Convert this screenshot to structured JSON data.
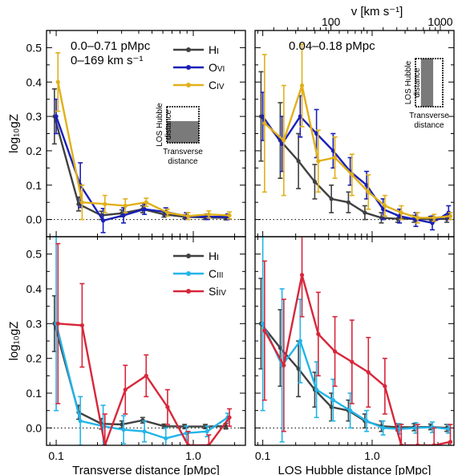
{
  "figure": {
    "top_axis_label": "v [km s⁻¹]",
    "top_ticks": [
      {
        "value": 100,
        "label": "100"
      },
      {
        "value": 1000,
        "label": "1000"
      }
    ]
  },
  "chart_data": [
    {
      "id": "top-left",
      "type": "line",
      "panel_text": [
        "0.0–0.71 pMpc",
        "0–169 km s⁻¹"
      ],
      "ylabel": "log₁₀gZ",
      "xlabel": "",
      "xscale": "log",
      "xlim": [
        0.085,
        2.4
      ],
      "ylim": [
        -0.05,
        0.55
      ],
      "ytick_labels": [
        "0.0",
        "0.1",
        "0.2",
        "0.3",
        "0.4",
        "0.5"
      ],
      "x_ticks": [],
      "legend": {
        "placement": "top-right",
        "entries": [
          "HI",
          "OVI",
          "CIV"
        ]
      },
      "inset": {
        "present": true,
        "y_label": "LOS Hubble distance",
        "x_label": "Transverse distance"
      },
      "series": [
        {
          "name": "HI",
          "color": "#404040",
          "x": [
            0.1,
            0.15,
            0.22,
            0.31,
            0.44,
            0.63,
            0.89,
            1.26,
            1.78
          ],
          "y": [
            0.3,
            0.045,
            0.012,
            0.018,
            0.03,
            0.015,
            0.008,
            0.006,
            0.005
          ],
          "err": [
            0.08,
            0.02,
            0.012,
            0.01,
            0.01,
            0.008,
            0.006,
            0.006,
            0.006
          ]
        },
        {
          "name": "OVI",
          "color": "#1a20b8",
          "x": [
            0.1,
            0.15,
            0.22,
            0.31,
            0.44,
            0.63,
            0.89,
            1.26,
            1.78
          ],
          "y": [
            0.3,
            0.1,
            -0.003,
            0.012,
            0.03,
            0.022,
            0.01,
            0.008,
            0.008
          ],
          "err": [
            0.05,
            0.065,
            0.035,
            0.022,
            0.015,
            0.012,
            0.01,
            0.008,
            0.008
          ]
        },
        {
          "name": "CIV",
          "color": "#e0b01a",
          "x": [
            0.1,
            0.15,
            0.22,
            0.31,
            0.44,
            0.63,
            0.89,
            1.26,
            1.78
          ],
          "y": [
            0.4,
            0.05,
            0.045,
            0.04,
            0.05,
            0.02,
            0.01,
            0.015,
            0.012
          ],
          "err": [
            0.085,
            0.05,
            0.025,
            0.02,
            0.012,
            0.01,
            0.01,
            0.01,
            0.01
          ]
        }
      ]
    },
    {
      "id": "top-right",
      "type": "line",
      "panel_text": [
        "0.04–0.18 pMpc"
      ],
      "ylabel": "",
      "xlabel": "",
      "xscale": "log",
      "xlim": [
        0.085,
        5.6
      ],
      "ylim": [
        -0.05,
        0.55
      ],
      "ytick_labels": [],
      "x_ticks": [],
      "legend": null,
      "inset": {
        "present": true,
        "y_label": "LOS Hubble distance",
        "x_label": "Transverse distance"
      },
      "series": [
        {
          "name": "HI",
          "color": "#404040",
          "x": [
            0.1,
            0.15,
            0.22,
            0.31,
            0.44,
            0.63,
            0.89,
            1.26,
            1.78,
            2.51,
            3.55,
            5.0
          ],
          "y": [
            0.3,
            0.23,
            0.17,
            0.11,
            0.06,
            0.05,
            0.02,
            0.005,
            0.002,
            0.002,
            0.001,
            0.002
          ],
          "err": [
            0.13,
            0.11,
            0.08,
            0.05,
            0.04,
            0.03,
            0.02,
            0.015,
            0.01,
            0.01,
            0.008,
            0.01
          ]
        },
        {
          "name": "OVI",
          "color": "#1a20b8",
          "x": [
            0.1,
            0.15,
            0.22,
            0.31,
            0.44,
            0.63,
            0.89,
            1.26,
            1.78,
            2.51,
            3.55,
            5.0
          ],
          "y": [
            0.3,
            0.22,
            0.3,
            0.25,
            0.2,
            0.14,
            0.1,
            0.03,
            0.01,
            0.0,
            -0.01,
            0.02
          ],
          "err": [
            0.07,
            0.08,
            0.06,
            0.07,
            0.05,
            0.04,
            0.04,
            0.03,
            0.02,
            0.02,
            0.02,
            0.02
          ]
        },
        {
          "name": "CIV",
          "color": "#e0b01a",
          "x": [
            0.1,
            0.15,
            0.22,
            0.31,
            0.44,
            0.63,
            0.89,
            1.26,
            1.78,
            2.51,
            3.55,
            5.0
          ],
          "y": [
            0.28,
            0.23,
            0.39,
            0.17,
            0.18,
            0.13,
            0.08,
            0.04,
            0.02,
            0.005,
            0.005,
            0.01
          ],
          "err": [
            0.2,
            0.16,
            0.12,
            0.09,
            0.06,
            0.06,
            0.05,
            0.03,
            0.02,
            0.015,
            0.01,
            0.01
          ]
        }
      ]
    },
    {
      "id": "bottom-left",
      "type": "line",
      "panel_text": [],
      "ylabel": "log₁₀gZ",
      "xlabel": "Transverse distance [pMpc]",
      "xscale": "log",
      "xlim": [
        0.085,
        2.4
      ],
      "ylim": [
        -0.05,
        0.55
      ],
      "ytick_labels": [
        "0.0",
        "0.1",
        "0.2",
        "0.3",
        "0.4",
        "0.5"
      ],
      "x_ticks": [
        {
          "value": 0.1,
          "label": "0.1"
        },
        {
          "value": 1.0,
          "label": "1.0"
        }
      ],
      "legend": {
        "placement": "top-right",
        "entries": [
          "HI",
          "CIII",
          "SiIV"
        ]
      },
      "inset": {
        "present": false
      },
      "series": [
        {
          "name": "HI",
          "color": "#404040",
          "x": [
            0.1,
            0.15,
            0.22,
            0.31,
            0.44,
            0.63,
            0.89,
            1.26,
            1.78
          ],
          "y": [
            0.3,
            0.045,
            0.012,
            0.01,
            0.022,
            0.005,
            0.004,
            0.004,
            0.005
          ],
          "err": [
            0.08,
            0.02,
            0.015,
            0.01,
            0.008,
            0.006,
            0.006,
            0.006,
            0.008
          ]
        },
        {
          "name": "CIII",
          "color": "#22b5e8",
          "x": [
            0.1,
            0.15,
            0.22,
            0.31,
            0.44,
            0.63,
            0.89,
            1.26,
            1.78
          ],
          "y": [
            0.3,
            0.02,
            0.005,
            -0.005,
            -0.01,
            -0.03,
            -0.015,
            -0.01,
            0.03
          ],
          "err": [
            0.25,
            0.07,
            0.06,
            0.04,
            0.03,
            0.03,
            0.02,
            0.015,
            0.012
          ]
        },
        {
          "name": "SiIV",
          "color": "#d7273a",
          "x": [
            0.1,
            0.15,
            0.22,
            0.31,
            0.44,
            0.63,
            0.89,
            1.26,
            1.78
          ],
          "y": [
            0.3,
            0.295,
            -0.05,
            0.11,
            0.15,
            0.06,
            -0.05,
            -0.05,
            0.03
          ],
          "err": [
            0.23,
            0.12,
            0.09,
            0.07,
            0.06,
            0.05,
            0.04,
            0.03,
            0.025
          ]
        }
      ]
    },
    {
      "id": "bottom-right",
      "type": "line",
      "panel_text": [],
      "ylabel": "",
      "xlabel": "LOS Hubble distance [pMpc]",
      "xscale": "log",
      "xlim": [
        0.085,
        5.6
      ],
      "ylim": [
        -0.05,
        0.55
      ],
      "ytick_labels": [],
      "x_ticks": [
        {
          "value": 0.1,
          "label": "0.1"
        },
        {
          "value": 1.0,
          "label": "1.0"
        }
      ],
      "legend": null,
      "inset": {
        "present": false
      },
      "series": [
        {
          "name": "HI",
          "color": "#404040",
          "x": [
            0.1,
            0.15,
            0.22,
            0.31,
            0.44,
            0.63,
            0.89,
            1.26,
            1.78,
            2.51,
            3.55,
            5.0
          ],
          "y": [
            0.3,
            0.23,
            0.17,
            0.11,
            0.06,
            0.05,
            0.02,
            0.005,
            0.002,
            0.002,
            0.003,
            0.0
          ],
          "err": [
            0.13,
            0.11,
            0.08,
            0.05,
            0.04,
            0.03,
            0.02,
            0.015,
            0.01,
            0.01,
            0.008,
            0.01
          ]
        },
        {
          "name": "CIII",
          "color": "#22b5e8",
          "x": [
            0.1,
            0.15,
            0.22,
            0.31,
            0.44,
            0.63,
            0.89,
            1.26,
            1.78,
            2.51,
            3.55,
            5.0
          ],
          "y": [
            0.3,
            0.18,
            0.25,
            0.11,
            0.08,
            0.05,
            0.02,
            0.0,
            -0.003,
            0.0,
            0.002,
            -0.003
          ],
          "err": [
            0.25,
            0.22,
            0.12,
            0.08,
            0.06,
            0.05,
            0.03,
            0.02,
            0.015,
            0.015,
            0.015,
            0.012
          ]
        },
        {
          "name": "SiIV",
          "color": "#d7273a",
          "x": [
            0.1,
            0.15,
            0.22,
            0.31,
            0.44,
            0.63,
            0.89,
            1.26,
            1.78,
            2.51,
            3.55,
            5.0
          ],
          "y": [
            0.28,
            0.18,
            0.44,
            0.27,
            0.22,
            0.19,
            0.16,
            0.12,
            -0.05,
            -0.05,
            -0.05,
            -0.04
          ],
          "err": [
            0.2,
            0.19,
            0.12,
            0.12,
            0.1,
            0.12,
            0.1,
            0.08,
            0.06,
            0.06,
            0.05,
            0.05
          ]
        }
      ]
    }
  ]
}
